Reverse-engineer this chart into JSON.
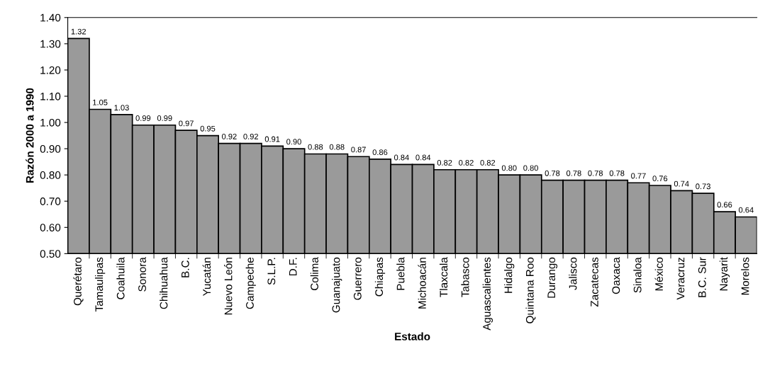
{
  "chart_data": {
    "type": "bar",
    "xlabel": "Estado",
    "ylabel": "Razón 2000 a 1990",
    "categories": [
      "Querétaro",
      "Tamaulipas",
      "Coahuila",
      "Sonora",
      "Chihuahua",
      "B.C.",
      "Yucatán",
      "Nuevo León",
      "Campeche",
      "S.L.P.",
      "D.F.",
      "Colima",
      "Guanajuato",
      "Guerrero",
      "Chiapas",
      "Puebla",
      "Michoacán",
      "Tlaxcala",
      "Tabasco",
      "Aguascalientes",
      "Hidalgo",
      "Quintana Roo",
      "Durango",
      "Jalisco",
      "Zacatecas",
      "Oaxaca",
      "Sinaloa",
      "México",
      "Veracruz",
      "B.C. Sur",
      "Nayarit",
      "Morelos"
    ],
    "values": [
      1.32,
      1.05,
      1.03,
      0.99,
      0.99,
      0.97,
      0.95,
      0.92,
      0.92,
      0.91,
      0.9,
      0.88,
      0.88,
      0.87,
      0.86,
      0.84,
      0.84,
      0.82,
      0.82,
      0.82,
      0.8,
      0.8,
      0.78,
      0.78,
      0.78,
      0.78,
      0.77,
      0.76,
      0.74,
      0.73,
      0.66,
      0.64
    ],
    "value_labels": [
      "1.32",
      "1.05",
      "1.03",
      "0.99",
      "0.99",
      "0.97",
      "0.95",
      "0.92",
      "0.92",
      "0.91",
      "0.90",
      "0.88",
      "0.88",
      "0.87",
      "0.86",
      "0.84",
      "0.84",
      "0.82",
      "0.82",
      "0.82",
      "0.80",
      "0.80",
      "0.78",
      "0.78",
      "0.78",
      "0.78",
      "0.77",
      "0.76",
      "0.74",
      "0.73",
      "0.66",
      "0.64"
    ],
    "color": "#9a9a9a",
    "ylim": [
      0.5,
      1.4
    ],
    "yticks": [
      {
        "value": 0.5,
        "label": "0.50"
      },
      {
        "value": 0.6,
        "label": "0.60"
      },
      {
        "value": 0.7,
        "label": "0.70"
      },
      {
        "value": 0.8,
        "label": "0.80"
      },
      {
        "value": 0.9,
        "label": "0.90"
      },
      {
        "value": 1.0,
        "label": "1.00"
      },
      {
        "value": 1.1,
        "label": "1.10"
      },
      {
        "value": 1.2,
        "label": "1.20"
      },
      {
        "value": 1.3,
        "label": "1.30"
      },
      {
        "value": 1.4,
        "label": "1.40"
      }
    ],
    "grid": false,
    "legend": false
  }
}
